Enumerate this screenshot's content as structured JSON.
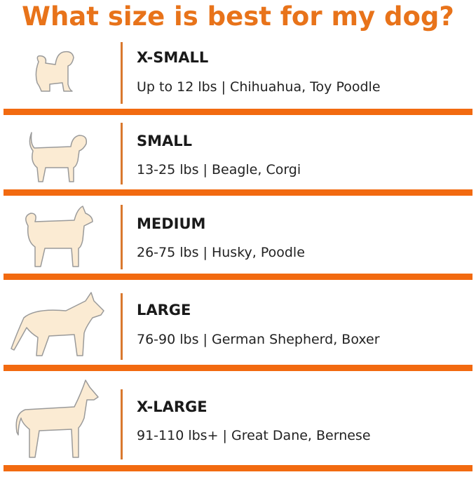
{
  "title": "What size is best for my dog?",
  "colors": {
    "accent": "#E8731A",
    "bar": "#F26A10",
    "dog_fill": "#FBEBD3"
  },
  "sizes": [
    {
      "label": "X-SMALL",
      "description": "Up to 12 lbs | Chihuahua, Toy Poodle",
      "icon": "small-fluffy-dog-icon"
    },
    {
      "label": "SMALL",
      "description": "13-25 lbs | Beagle, Corgi",
      "icon": "beagle-icon"
    },
    {
      "label": "MEDIUM",
      "description": "26-75 lbs | Husky, Poodle",
      "icon": "husky-icon"
    },
    {
      "label": "LARGE",
      "description": "76-90 lbs | German Shepherd, Boxer",
      "icon": "german-shepherd-icon"
    },
    {
      "label": "X-LARGE",
      "description": "91-110 lbs+ | Great Dane, Bernese",
      "icon": "great-dane-icon"
    }
  ]
}
